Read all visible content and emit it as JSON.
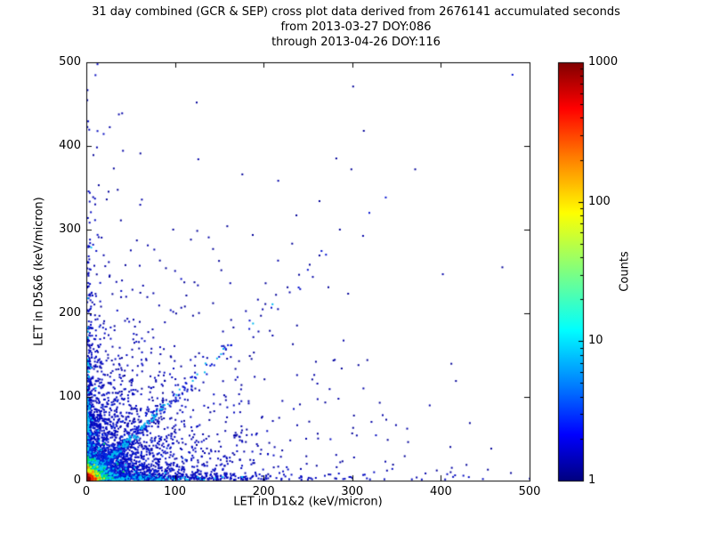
{
  "chart_data": {
    "type": "scatter",
    "title": "31 day combined (GCR & SEP) cross plot data derived from 2676141 accumulated seconds",
    "subtitle_from": "from 2013-03-27 DOY:086",
    "subtitle_through": "through 2013-04-26 DOY:116",
    "xlabel": "LET in D1&2 (keV/micron)",
    "ylabel": "LET in D5&6 (keV/micron)",
    "xlim": [
      0,
      500
    ],
    "ylim": [
      0,
      500
    ],
    "x_ticks": [
      0,
      100,
      200,
      300,
      400,
      500
    ],
    "y_ticks": [
      0,
      100,
      200,
      300,
      400,
      500
    ],
    "grid": false,
    "legend": "none",
    "colorbar": {
      "label": "Counts",
      "scale": "log",
      "min": 1,
      "max": 1000,
      "ticks": [
        1,
        10,
        100,
        1000
      ],
      "colormap": "jet",
      "gradient_stops": [
        [
          0.0,
          "#000080"
        ],
        [
          0.11,
          "#0000ff"
        ],
        [
          0.23,
          "#0080ff"
        ],
        [
          0.36,
          "#00ffff"
        ],
        [
          0.5,
          "#80ff80"
        ],
        [
          0.64,
          "#ffff00"
        ],
        [
          0.77,
          "#ff8000"
        ],
        [
          0.89,
          "#ff0000"
        ],
        [
          1.0,
          "#800000"
        ]
      ]
    },
    "density_model": {
      "note": "2D histogram-style scatter: counts peak >100 (red/orange/yellow) in the corner near the origin, ~10 counts (cyan/green) along both axes and a unit-slope diagonal near the origin, single counts (dark blue) speckled across the lower-left region with sparse outliers up to (300,470).",
      "seed": 42,
      "sparse_color": "#000099",
      "clusters": [
        {
          "name": "far-field",
          "dist": "exp",
          "sx": 150,
          "sy": 120,
          "n": 150,
          "color": "#000099",
          "size": 2
        },
        {
          "name": "mid-field",
          "dist": "exp",
          "sx": 75,
          "sy": 75,
          "n": 700,
          "color": "#0000a8",
          "size": 2
        },
        {
          "name": "near-field",
          "dist": "exp",
          "sx": 40,
          "sy": 40,
          "n": 1400,
          "color": "#0008c0",
          "size": 2
        },
        {
          "name": "bottom-band-blue",
          "dist": "exp",
          "sx": 85,
          "sy": 4,
          "n": 600,
          "color": "#0008c0",
          "size": 2
        },
        {
          "name": "left-band-blue",
          "dist": "exp",
          "sx": 4,
          "sy": 95,
          "n": 500,
          "color": "#0008c0",
          "size": 2
        },
        {
          "name": "diag-blue",
          "dist": "diag",
          "scale": 50,
          "jitter": 5,
          "n": 350,
          "color": "#0010d0",
          "size": 2
        },
        {
          "name": "diag-cyan",
          "dist": "diag",
          "scale": 30,
          "jitter": 2.5,
          "n": 220,
          "color": "#00b8f0",
          "size": 2
        },
        {
          "name": "bottom-band-cyan",
          "dist": "exp",
          "sx": 30,
          "sy": 2,
          "n": 350,
          "color": "#00c8f8",
          "size": 2
        },
        {
          "name": "left-band-cyan",
          "dist": "exp",
          "sx": 2,
          "sy": 32,
          "n": 280,
          "color": "#00c8f8",
          "size": 2
        },
        {
          "name": "core-blue",
          "dist": "exp",
          "sx": 16,
          "sy": 16,
          "n": 700,
          "color": "#0028e0",
          "size": 2
        },
        {
          "name": "core-cyan",
          "dist": "exp",
          "sx": 8,
          "sy": 8,
          "n": 550,
          "color": "#00d0f0",
          "size": 2
        },
        {
          "name": "core-green",
          "dist": "exp",
          "sx": 5,
          "sy": 5,
          "n": 420,
          "color": "#00e060",
          "size": 2
        },
        {
          "name": "core-yellow",
          "dist": "exp",
          "sx": 3.2,
          "sy": 3.2,
          "n": 320,
          "color": "#e0f000",
          "size": 2
        },
        {
          "name": "core-orange",
          "dist": "exp",
          "sx": 2.2,
          "sy": 2.2,
          "n": 240,
          "color": "#ff9000",
          "size": 2
        },
        {
          "name": "core-red",
          "dist": "exp",
          "sx": 1.4,
          "sy": 1.4,
          "n": 200,
          "color": "#f02000",
          "size": 2
        },
        {
          "name": "core-darkred",
          "dist": "exp",
          "sx": 0.8,
          "sy": 0.8,
          "n": 120,
          "color": "#900000",
          "size": 2
        }
      ],
      "sparse_points": [
        [
          300,
          470
        ],
        [
          312,
          417
        ],
        [
          298,
          371
        ],
        [
          281,
          384
        ],
        [
          262,
          333
        ],
        [
          236,
          316
        ],
        [
          175,
          365
        ],
        [
          158,
          303
        ],
        [
          117,
          287
        ],
        [
          97,
          299
        ],
        [
          60,
          390
        ],
        [
          30,
          372
        ],
        [
          7,
          388
        ],
        [
          13,
          352
        ],
        [
          22,
          335
        ],
        [
          196,
          196
        ],
        [
          201,
          210
        ],
        [
          213,
          221
        ],
        [
          226,
          230
        ],
        [
          239,
          245
        ],
        [
          251,
          257
        ],
        [
          262,
          268
        ],
        [
          285,
          299
        ],
        [
          306,
          137
        ],
        [
          316,
          143
        ],
        [
          410,
          9
        ],
        [
          452,
          12
        ],
        [
          478,
          8
        ],
        [
          362,
          45
        ],
        [
          345,
          18
        ],
        [
          330,
          92
        ],
        [
          300,
          62
        ],
        [
          288,
          22
        ],
        [
          258,
          141
        ],
        [
          232,
          162
        ],
        [
          206,
          178
        ],
        [
          188,
          152
        ],
        [
          165,
          182
        ],
        [
          142,
          211
        ],
        [
          121,
          236
        ],
        [
          82,
          262
        ],
        [
          56,
          286
        ],
        [
          38,
          310
        ],
        [
          370,
          371
        ],
        [
          150,
          90
        ],
        [
          180,
          60
        ],
        [
          220,
          35
        ],
        [
          260,
          55
        ],
        [
          240,
          90
        ],
        [
          200,
          120
        ]
      ]
    }
  }
}
